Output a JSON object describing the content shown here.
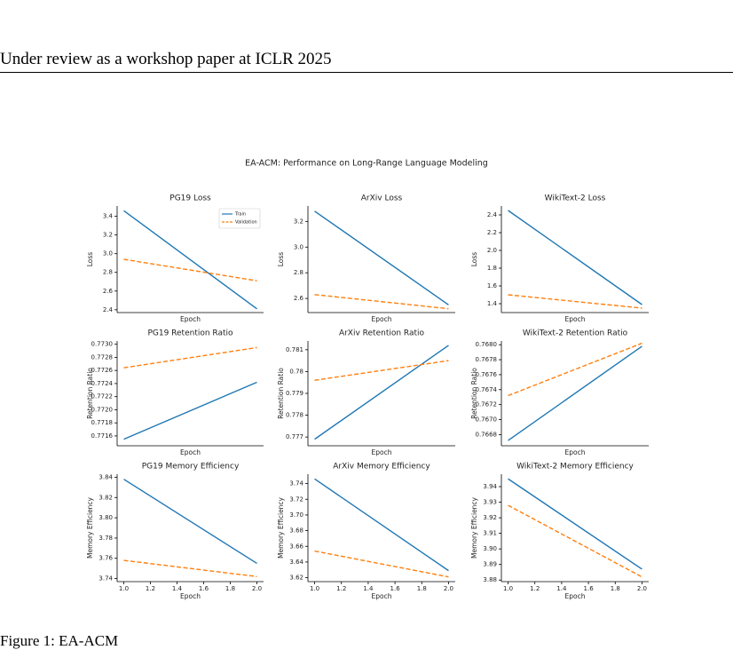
{
  "header": "Under review as a workshop paper at ICLR 2025",
  "figure": {
    "suptitle": "EA-ACM: Performance on Long-Range Language Modeling",
    "charts": [
      {
        "type": "line",
        "title": "PG19 Loss",
        "xlabel": "Epoch",
        "ylabel": "Loss",
        "x": [
          1,
          2
        ],
        "xlim": [
          0.95,
          2.05
        ],
        "ylim": [
          2.37,
          3.51
        ],
        "yticks": [
          2.4,
          2.6,
          2.8,
          {
            "value": 3,
            "label": "3.0"
          },
          3.2,
          3.4
        ],
        "legend": "upper right",
        "series": [
          {
            "name": "Train",
            "color": "#1f77b4",
            "linestyle": "solid",
            "values": [
              3.46,
              2.41
            ]
          },
          {
            "name": "Validation",
            "color": "#ff7f0e",
            "linestyle": "dashed",
            "values": [
              2.94,
              2.71
            ]
          }
        ]
      },
      {
        "type": "line",
        "title": "ArXiv Loss",
        "xlabel": "Epoch",
        "ylabel": "Loss",
        "x": [
          1,
          2
        ],
        "xlim": [
          0.95,
          2.05
        ],
        "ylim": [
          2.49,
          3.32
        ],
        "yticks": [
          2.6,
          2.8,
          {
            "value": 3,
            "label": "3.0"
          },
          3.2
        ],
        "series": [
          {
            "name": "Train",
            "color": "#1f77b4",
            "linestyle": "solid",
            "values": [
              3.28,
              2.55
            ]
          },
          {
            "name": "Validation",
            "color": "#ff7f0e",
            "linestyle": "dashed",
            "values": [
              2.63,
              2.52
            ]
          }
        ]
      },
      {
        "type": "line",
        "title": "WikiText-2 Loss",
        "xlabel": "Epoch",
        "ylabel": "Loss",
        "x": [
          1,
          2
        ],
        "xlim": [
          0.95,
          2.05
        ],
        "ylim": [
          1.3,
          2.5
        ],
        "yticks": [
          1.4,
          1.6,
          1.8,
          {
            "value": 2,
            "label": "2.0"
          },
          2.2,
          2.4
        ],
        "series": [
          {
            "name": "Train",
            "color": "#1f77b4",
            "linestyle": "solid",
            "values": [
              2.45,
              1.39
            ]
          },
          {
            "name": "Validation",
            "color": "#ff7f0e",
            "linestyle": "dashed",
            "values": [
              1.5,
              1.35
            ]
          }
        ]
      },
      {
        "type": "line",
        "title": "PG19 Retention Ratio",
        "xlabel": "Epoch",
        "ylabel": "Retention Ratio",
        "x": [
          1,
          2
        ],
        "xlim": [
          0.95,
          2.05
        ],
        "ylim": [
          0.77145,
          0.77305
        ],
        "yticks": [
          0.7716,
          0.7718,
          {
            "value": 0.772,
            "label": "0.7720"
          },
          0.7722,
          0.7724,
          0.7726,
          0.7728,
          {
            "value": 0.773,
            "label": "0.7730"
          }
        ],
        "series": [
          {
            "name": "Train",
            "color": "#1f77b4",
            "linestyle": "solid",
            "values": [
              0.77155,
              0.77242
            ]
          },
          {
            "name": "Validation",
            "color": "#ff7f0e",
            "linestyle": "dashed",
            "values": [
              0.77264,
              0.77295
            ]
          }
        ]
      },
      {
        "type": "line",
        "title": "ArXiv Retention Ratio",
        "xlabel": "Epoch",
        "ylabel": "Retention Ratio",
        "x": [
          1,
          2
        ],
        "xlim": [
          0.95,
          2.05
        ],
        "ylim": [
          0.7766,
          0.7814
        ],
        "yticks": [
          0.777,
          0.778,
          0.779,
          0.78,
          0.781
        ],
        "series": [
          {
            "name": "Train",
            "color": "#1f77b4",
            "linestyle": "solid",
            "values": [
              0.7769,
              0.7812
            ]
          },
          {
            "name": "Validation",
            "color": "#ff7f0e",
            "linestyle": "dashed",
            "values": [
              0.7796,
              0.7805
            ]
          }
        ]
      },
      {
        "type": "line",
        "title": "WikiText-2 Retention Ratio",
        "xlabel": "Epoch",
        "ylabel": "Retention Ratio",
        "x": [
          1,
          2
        ],
        "xlim": [
          0.95,
          2.05
        ],
        "ylim": [
          0.76665,
          0.76805
        ],
        "yticks": [
          0.7668,
          {
            "value": 0.767,
            "label": "0.7670"
          },
          0.7672,
          0.7674,
          0.7676,
          0.7678,
          {
            "value": 0.768,
            "label": "0.7680"
          }
        ],
        "series": [
          {
            "name": "Train",
            "color": "#1f77b4",
            "linestyle": "solid",
            "values": [
              0.76672,
              0.76798
            ]
          },
          {
            "name": "Validation",
            "color": "#ff7f0e",
            "linestyle": "dashed",
            "values": [
              0.76732,
              0.76802
            ]
          }
        ]
      },
      {
        "type": "line",
        "title": "PG19 Memory Efficiency",
        "xlabel": "Epoch",
        "ylabel": "Memory Efficiency",
        "x": [
          1,
          2
        ],
        "xlim": [
          0.95,
          2.05
        ],
        "xticks": [
          {
            "value": 1,
            "label": "1.0"
          },
          1.2,
          1.4,
          1.6,
          1.8,
          {
            "value": 2,
            "label": "2.0"
          }
        ],
        "ylim": [
          3.737,
          3.843
        ],
        "yticks": [
          3.74,
          3.76,
          3.78,
          {
            "value": 3.8,
            "label": "3.80"
          },
          3.82,
          3.84
        ],
        "series": [
          {
            "name": "Train",
            "color": "#1f77b4",
            "linestyle": "solid",
            "values": [
              3.838,
              3.755
            ]
          },
          {
            "name": "Validation",
            "color": "#ff7f0e",
            "linestyle": "dashed",
            "values": [
              3.758,
              3.742
            ]
          }
        ]
      },
      {
        "type": "line",
        "title": "ArXiv Memory Efficiency",
        "xlabel": "Epoch",
        "ylabel": "Memory Efficiency",
        "x": [
          1,
          2
        ],
        "xlim": [
          0.95,
          2.05
        ],
        "xticks": [
          {
            "value": 1,
            "label": "1.0"
          },
          1.2,
          1.4,
          1.6,
          1.8,
          {
            "value": 2,
            "label": "2.0"
          }
        ],
        "ylim": [
          3.615,
          3.752
        ],
        "yticks": [
          3.62,
          3.64,
          3.66,
          3.68,
          {
            "value": 3.7,
            "label": "3.70"
          },
          3.72,
          3.74
        ],
        "series": [
          {
            "name": "Train",
            "color": "#1f77b4",
            "linestyle": "solid",
            "values": [
              3.746,
              3.629
            ]
          },
          {
            "name": "Validation",
            "color": "#ff7f0e",
            "linestyle": "dashed",
            "values": [
              3.654,
              3.621
            ]
          }
        ]
      },
      {
        "type": "line",
        "title": "WikiText-2 Memory Efficiency",
        "xlabel": "Epoch",
        "ylabel": "Memory Efficiency",
        "x": [
          1,
          2
        ],
        "xlim": [
          0.95,
          2.05
        ],
        "xticks": [
          {
            "value": 1,
            "label": "1.0"
          },
          1.2,
          1.4,
          1.6,
          1.8,
          {
            "value": 2,
            "label": "2.0"
          }
        ],
        "ylim": [
          3.879,
          3.948
        ],
        "yticks": [
          3.88,
          3.89,
          {
            "value": 3.9,
            "label": "3.90"
          },
          3.91,
          3.92,
          3.93,
          3.94
        ],
        "series": [
          {
            "name": "Train",
            "color": "#1f77b4",
            "linestyle": "solid",
            "values": [
              3.945,
              3.887
            ]
          },
          {
            "name": "Validation",
            "color": "#ff7f0e",
            "linestyle": "dashed",
            "values": [
              3.928,
              3.882
            ]
          }
        ]
      }
    ]
  },
  "caption": "Figure 1:  EA-ACM"
}
